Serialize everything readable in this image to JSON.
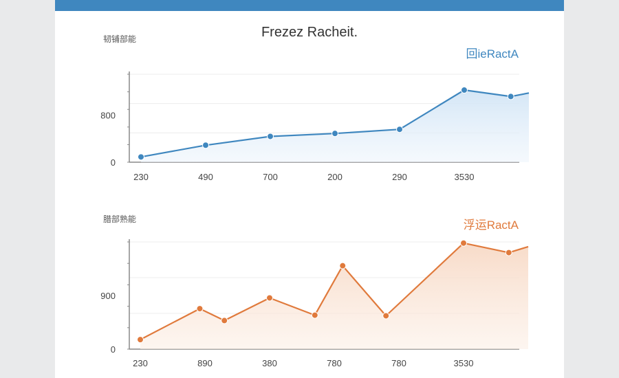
{
  "colors": {
    "header_bar": "#3f87bf",
    "series_blue": "#3f87bf",
    "series_orange": "#e07a3c"
  },
  "page": {
    "title": "Frezez Racheit."
  },
  "chart_data": [
    {
      "type": "area",
      "title": "Frezez Racheit.",
      "ylabel": "韧铺部能",
      "legend": {
        "label": "回ieRactA",
        "placement": "top-right",
        "color": "#3f87bf"
      },
      "grid": true,
      "xticks": [
        "230",
        "490",
        "700",
        "200",
        "290",
        "3530"
      ],
      "yticks": [
        {
          "label": "0",
          "value": 0
        },
        {
          "label": "800",
          "value": 800
        }
      ],
      "ylim": [
        0,
        1500
      ],
      "series": [
        {
          "x": [
            0,
            1,
            2,
            3,
            4,
            5,
            5.72,
            6.0
          ],
          "values": [
            90,
            290,
            440,
            490,
            560,
            1230,
            1120,
            1180
          ]
        }
      ]
    },
    {
      "type": "area",
      "ylabel": "腊部熟能",
      "legend": {
        "label": "浮运RactA",
        "placement": "top-right",
        "color": "#e07a3c"
      },
      "grid": true,
      "xticks": [
        "230",
        "890",
        "380",
        "780",
        "780",
        "3530"
      ],
      "yticks": [
        {
          "label": "0",
          "value": 0
        },
        {
          "label": "900",
          "value": 900
        }
      ],
      "ylim": [
        0,
        1800
      ],
      "series": [
        {
          "x": [
            0,
            0.92,
            1.3,
            2,
            2.7,
            3.13,
            3.8,
            5.0,
            5.7,
            6.0
          ],
          "values": [
            160,
            680,
            480,
            860,
            570,
            1400,
            560,
            1780,
            1620,
            1720
          ]
        }
      ]
    }
  ]
}
